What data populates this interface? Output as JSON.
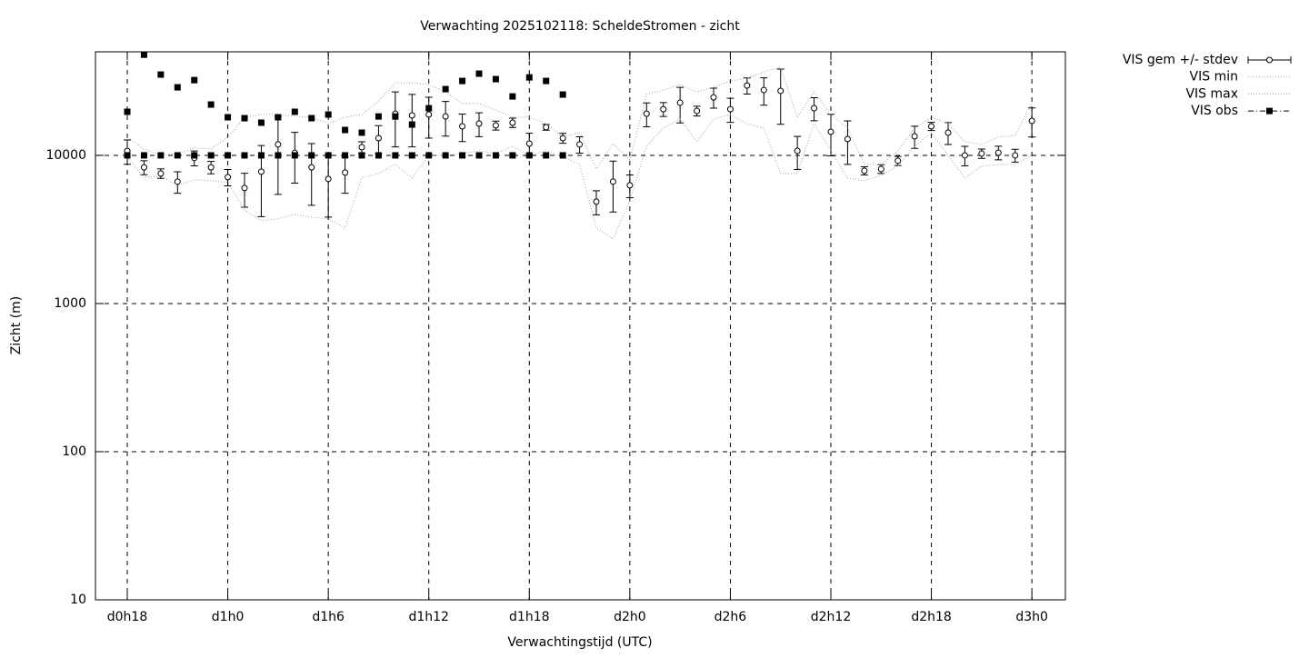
{
  "chart_data": {
    "type": "errorbar",
    "title": "Verwachting 2025102118: ScheldeStromen - zicht",
    "xlabel": "Verwachtingstijd (UTC)",
    "ylabel": "Zicht (m)",
    "log_y": true,
    "grid": true,
    "legend": "outside-top-right",
    "xlim": [
      16.1,
      74
    ],
    "xticks": [
      {
        "value": 18,
        "label": "d0h18"
      },
      {
        "value": 24,
        "label": "d1h0"
      },
      {
        "value": 30,
        "label": "d1h6"
      },
      {
        "value": 36,
        "label": "d1h12"
      },
      {
        "value": 42,
        "label": "d1h18"
      },
      {
        "value": 48,
        "label": "d2h0"
      },
      {
        "value": 54,
        "label": "d2h6"
      },
      {
        "value": 60,
        "label": "d2h12"
      },
      {
        "value": 66,
        "label": "d2h18"
      },
      {
        "value": 72,
        "label": "d3h0"
      }
    ],
    "ylim": [
      10,
      50000
    ],
    "yticks": [
      10,
      100,
      1000,
      10000
    ],
    "series": [
      {
        "name": "VIS gem +/- stdev",
        "style": "errorbars",
        "color": "#000000",
        "x": [
          18,
          19,
          20,
          21,
          22,
          23,
          24,
          25,
          26,
          27,
          28,
          29,
          30,
          31,
          32,
          33,
          34,
          35,
          36,
          37,
          38,
          39,
          40,
          41,
          42,
          43,
          44,
          45,
          46,
          47,
          48,
          49,
          50,
          51,
          52,
          53,
          54,
          55,
          56,
          57,
          58,
          59,
          60,
          61,
          62,
          63,
          64,
          65,
          66,
          67,
          68,
          69,
          70,
          71,
          72
        ],
        "values": [
          10700,
          8300,
          7550,
          6650,
          9600,
          8300,
          7130,
          6020,
          7760,
          11850,
          10400,
          8300,
          6930,
          7650,
          11350,
          13070,
          19100,
          18600,
          18870,
          18300,
          15700,
          16380,
          15920,
          16620,
          12010,
          15480,
          13070,
          11850,
          4870,
          6650,
          6280,
          19100,
          20500,
          22650,
          19950,
          24640,
          20500,
          29610,
          27600,
          27220,
          10730,
          20810,
          14420,
          12890,
          7870,
          8090,
          9190,
          13440,
          15700,
          14230,
          10000,
          10290,
          10430,
          10000,
          17090
        ],
        "errors": [
          2000,
          900,
          550,
          1100,
          1100,
          800,
          900,
          1550,
          3900,
          6400,
          3900,
          3700,
          3100,
          2100,
          1000,
          2800,
          7700,
          7200,
          5800,
          4800,
          3300,
          3000,
          1100,
          1200,
          2100,
          700,
          1000,
          1500,
          900,
          2500,
          1100,
          3500,
          2200,
          6100,
          1500,
          3800,
          3800,
          3700,
          5800,
          11000,
          2700,
          3700,
          4500,
          4200,
          500,
          550,
          650,
          2300,
          1000,
          2400,
          1500,
          750,
          1100,
          1000,
          3800
        ]
      },
      {
        "name": "VIS min",
        "style": "dotted",
        "color": "#a0a0a0",
        "x": [
          18,
          19,
          20,
          21,
          22,
          23,
          24,
          25,
          26,
          27,
          28,
          29,
          30,
          31,
          32,
          33,
          34,
          35,
          36,
          37,
          38,
          39,
          40,
          41,
          42,
          43,
          44,
          45,
          46,
          47,
          48,
          49,
          50,
          51,
          52,
          53,
          54,
          55,
          56,
          57,
          58,
          59,
          60,
          61,
          62,
          63,
          64,
          65,
          66,
          67,
          68,
          69,
          70,
          71,
          72
        ],
        "values": [
          9720,
          7130,
          7230,
          6280,
          6840,
          6740,
          6550,
          4290,
          3620,
          3730,
          4000,
          3830,
          3730,
          3240,
          7030,
          7540,
          8690,
          7030,
          10000,
          10000,
          10290,
          10730,
          10290,
          11510,
          10000,
          10730,
          9720,
          8690,
          3240,
          2730,
          4940,
          11510,
          15270,
          17570,
          12350,
          17570,
          18860,
          16380,
          15270,
          7540,
          7540,
          16380,
          10730,
          7030,
          6740,
          7330,
          8450,
          11510,
          14230,
          10000,
          7030,
          8450,
          8690,
          8690,
          10000
        ]
      },
      {
        "name": "VIS max",
        "style": "dotted",
        "color": "#a0a0a0",
        "x": [
          18,
          19,
          20,
          21,
          22,
          23,
          24,
          25,
          26,
          27,
          28,
          29,
          30,
          31,
          32,
          33,
          34,
          35,
          36,
          37,
          38,
          39,
          40,
          41,
          42,
          43,
          44,
          45,
          46,
          47,
          48,
          49,
          50,
          51,
          52,
          53,
          54,
          55,
          56,
          57,
          58,
          59,
          60,
          61,
          62,
          63,
          64,
          65,
          66,
          67,
          68,
          69,
          70,
          71,
          72
        ],
        "values": [
          13260,
          11040,
          10000,
          10290,
          11190,
          11040,
          13260,
          18080,
          18860,
          18860,
          18300,
          18080,
          16380,
          18080,
          18860,
          23290,
          30890,
          30890,
          30040,
          26830,
          22350,
          22350,
          20240,
          18080,
          18080,
          16380,
          13260,
          14230,
          8090,
          12010,
          9320,
          25720,
          27580,
          30040,
          26830,
          28790,
          31780,
          33160,
          36590,
          39250,
          18080,
          26830,
          18860,
          15270,
          8690,
          8690,
          10730,
          15270,
          18080,
          16380,
          12350,
          11840,
          13260,
          13640,
          22650
        ]
      },
      {
        "name": "VIS obs",
        "style": "points",
        "color": "#000000",
        "x": [
          18,
          19,
          20,
          21,
          22,
          23,
          24,
          25,
          26,
          27,
          28,
          29,
          30,
          31,
          32,
          33,
          34,
          35,
          36,
          37,
          38,
          39,
          40,
          41,
          42,
          43,
          44,
          18,
          19,
          20,
          21,
          22,
          23,
          24,
          25,
          26,
          27,
          28,
          29,
          30,
          31,
          32,
          33,
          34,
          35,
          36,
          37,
          38,
          39,
          40,
          41,
          42,
          43,
          44
        ],
        "values": [
          19680,
          47800,
          35100,
          28790,
          32200,
          22030,
          18080,
          17820,
          16620,
          18080,
          19680,
          17820,
          18860,
          14840,
          14230,
          18300,
          18300,
          16140,
          20810,
          28000,
          31780,
          35600,
          32700,
          25000,
          33600,
          31780,
          25720,
          10000,
          10000,
          10000,
          10000,
          10000,
          10000,
          10000,
          10000,
          10000,
          10000,
          10000,
          10000,
          10000,
          10000,
          10000,
          10000,
          10000,
          10000,
          10000,
          10000,
          10000,
          10000,
          10000,
          10000,
          10000,
          10000,
          10000
        ]
      }
    ]
  }
}
